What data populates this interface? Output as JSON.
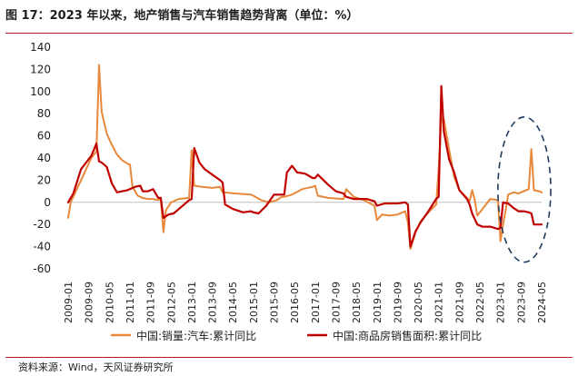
{
  "figure": {
    "title": "图 17：2023 年以来，地产销售与汽车销售趋势背离（单位：%）",
    "source": "资料来源：Wind，天风证券研究所"
  },
  "chart_data": {
    "type": "line",
    "title": "",
    "xlabel": "",
    "ylabel": "",
    "ylim": [
      -60,
      140
    ],
    "yticks": [
      -60,
      -40,
      -20,
      0,
      20,
      40,
      60,
      80,
      100,
      120,
      140
    ],
    "x_start": "2009-01",
    "x_end": "2024-05",
    "xticks": [
      "2009-01",
      "2009-09",
      "2010-05",
      "2011-01",
      "2011-09",
      "2012-05",
      "2013-01",
      "2013-09",
      "2014-05",
      "2015-01",
      "2015-09",
      "2016-05",
      "2017-01",
      "2017-09",
      "2018-05",
      "2019-01",
      "2019-09",
      "2020-05",
      "2021-01",
      "2021-09",
      "2022-05",
      "2023-01",
      "2023-09",
      "2024-05"
    ],
    "legend_position": "bottom",
    "annotation": "dashed-ellipse-2023-2024",
    "series": [
      {
        "name": "中国:销量:汽车:累计同比",
        "color": "#e8883a",
        "points": [
          [
            "2009-01",
            -14
          ],
          [
            "2009-02",
            0
          ],
          [
            "2009-04",
            10
          ],
          [
            "2009-06",
            20
          ],
          [
            "2009-08",
            30
          ],
          [
            "2009-10",
            40
          ],
          [
            "2009-12",
            46
          ],
          [
            "2010-01",
            124
          ],
          [
            "2010-02",
            82
          ],
          [
            "2010-03",
            72
          ],
          [
            "2010-04",
            62
          ],
          [
            "2010-06",
            52
          ],
          [
            "2010-08",
            43
          ],
          [
            "2010-10",
            38
          ],
          [
            "2010-12",
            35
          ],
          [
            "2011-01",
            34
          ],
          [
            "2011-02",
            14
          ],
          [
            "2011-04",
            6
          ],
          [
            "2011-06",
            4
          ],
          [
            "2011-08",
            3
          ],
          [
            "2011-10",
            3
          ],
          [
            "2011-12",
            2
          ],
          [
            "2012-01",
            3
          ],
          [
            "2012-02",
            -27
          ],
          [
            "2012-03",
            -7
          ],
          [
            "2012-05",
            0
          ],
          [
            "2012-08",
            3
          ],
          [
            "2012-12",
            4
          ],
          [
            "2013-01",
            47
          ],
          [
            "2013-02",
            15
          ],
          [
            "2013-05",
            14
          ],
          [
            "2013-09",
            13
          ],
          [
            "2013-12",
            14
          ],
          [
            "2014-01",
            9
          ],
          [
            "2014-06",
            8
          ],
          [
            "2014-12",
            7
          ],
          [
            "2015-01",
            6
          ],
          [
            "2015-04",
            2
          ],
          [
            "2015-07",
            0
          ],
          [
            "2015-10",
            2
          ],
          [
            "2015-12",
            5
          ],
          [
            "2016-01",
            5
          ],
          [
            "2016-04",
            7
          ],
          [
            "2016-08",
            12
          ],
          [
            "2016-12",
            14
          ],
          [
            "2017-01",
            15
          ],
          [
            "2017-02",
            6
          ],
          [
            "2017-06",
            4
          ],
          [
            "2017-12",
            3
          ],
          [
            "2018-01",
            12
          ],
          [
            "2018-04",
            5
          ],
          [
            "2018-08",
            2
          ],
          [
            "2018-12",
            -3
          ],
          [
            "2019-01",
            -16
          ],
          [
            "2019-03",
            -11
          ],
          [
            "2019-06",
            -12
          ],
          [
            "2019-09",
            -11
          ],
          [
            "2019-12",
            -8
          ],
          [
            "2020-01",
            -18
          ],
          [
            "2020-02",
            -42
          ],
          [
            "2020-04",
            -27
          ],
          [
            "2020-06",
            -17
          ],
          [
            "2020-09",
            -9
          ],
          [
            "2020-12",
            -2
          ],
          [
            "2021-01",
            30
          ],
          [
            "2021-02",
            76
          ],
          [
            "2021-03",
            75
          ],
          [
            "2021-05",
            48
          ],
          [
            "2021-07",
            23
          ],
          [
            "2021-09",
            11
          ],
          [
            "2021-12",
            4
          ],
          [
            "2022-01",
            1
          ],
          [
            "2022-02",
            11
          ],
          [
            "2022-03",
            2
          ],
          [
            "2022-04",
            -12
          ],
          [
            "2022-06",
            -6
          ],
          [
            "2022-09",
            3
          ],
          [
            "2022-12",
            2
          ],
          [
            "2023-01",
            -35
          ],
          [
            "2023-02",
            -20
          ],
          [
            "2023-03",
            -7
          ],
          [
            "2023-04",
            7
          ],
          [
            "2023-06",
            9
          ],
          [
            "2023-08",
            8
          ],
          [
            "2023-10",
            10
          ],
          [
            "2023-12",
            12
          ],
          [
            "2024-01",
            48
          ],
          [
            "2024-02",
            11
          ],
          [
            "2024-04",
            10
          ],
          [
            "2024-05",
            9
          ]
        ]
      },
      {
        "name": "中国:商品房销售面积:累计同比",
        "color": "#c00000",
        "points": [
          [
            "2009-01",
            0
          ],
          [
            "2009-03",
            8
          ],
          [
            "2009-06",
            30
          ],
          [
            "2009-08",
            36
          ],
          [
            "2009-10",
            42
          ],
          [
            "2009-12",
            53
          ],
          [
            "2010-01",
            37
          ],
          [
            "2010-02",
            36
          ],
          [
            "2010-04",
            32
          ],
          [
            "2010-06",
            17
          ],
          [
            "2010-08",
            9
          ],
          [
            "2010-10",
            10
          ],
          [
            "2010-12",
            11
          ],
          [
            "2011-01",
            12
          ],
          [
            "2011-03",
            14
          ],
          [
            "2011-05",
            15
          ],
          [
            "2011-06",
            10
          ],
          [
            "2011-08",
            10
          ],
          [
            "2011-10",
            12
          ],
          [
            "2011-12",
            4
          ],
          [
            "2012-01",
            4
          ],
          [
            "2012-02",
            -14
          ],
          [
            "2012-04",
            -11
          ],
          [
            "2012-06",
            -10
          ],
          [
            "2012-09",
            -4
          ],
          [
            "2012-12",
            2
          ],
          [
            "2013-01",
            3
          ],
          [
            "2013-02",
            49
          ],
          [
            "2013-04",
            36
          ],
          [
            "2013-06",
            30
          ],
          [
            "2013-09",
            25
          ],
          [
            "2013-12",
            20
          ],
          [
            "2014-01",
            18
          ],
          [
            "2014-02",
            -2
          ],
          [
            "2014-05",
            -6
          ],
          [
            "2014-09",
            -9
          ],
          [
            "2014-12",
            -8
          ],
          [
            "2015-01",
            -9
          ],
          [
            "2015-03",
            -10
          ],
          [
            "2015-06",
            -3
          ],
          [
            "2015-09",
            7
          ],
          [
            "2015-12",
            7
          ],
          [
            "2016-01",
            7
          ],
          [
            "2016-02",
            27
          ],
          [
            "2016-04",
            33
          ],
          [
            "2016-06",
            27
          ],
          [
            "2016-09",
            26
          ],
          [
            "2016-12",
            22
          ],
          [
            "2017-01",
            22
          ],
          [
            "2017-02",
            25
          ],
          [
            "2017-06",
            16
          ],
          [
            "2017-09",
            10
          ],
          [
            "2017-12",
            8
          ],
          [
            "2018-01",
            5
          ],
          [
            "2018-04",
            3
          ],
          [
            "2018-09",
            3
          ],
          [
            "2018-12",
            1
          ],
          [
            "2019-01",
            -3
          ],
          [
            "2019-04",
            -1
          ],
          [
            "2019-09",
            -1
          ],
          [
            "2019-12",
            0
          ],
          [
            "2020-01",
            -2
          ],
          [
            "2020-02",
            -40
          ],
          [
            "2020-04",
            -26
          ],
          [
            "2020-06",
            -18
          ],
          [
            "2020-09",
            -8
          ],
          [
            "2020-12",
            3
          ],
          [
            "2021-01",
            5
          ],
          [
            "2021-02",
            105
          ],
          [
            "2021-03",
            64
          ],
          [
            "2021-05",
            39
          ],
          [
            "2021-07",
            27
          ],
          [
            "2021-09",
            11
          ],
          [
            "2021-12",
            3
          ],
          [
            "2022-01",
            -2
          ],
          [
            "2022-02",
            -10
          ],
          [
            "2022-04",
            -20
          ],
          [
            "2022-06",
            -22
          ],
          [
            "2022-09",
            -22
          ],
          [
            "2022-12",
            -24
          ],
          [
            "2023-01",
            -23
          ],
          [
            "2023-02",
            0
          ],
          [
            "2023-04",
            -1
          ],
          [
            "2023-06",
            -5
          ],
          [
            "2023-08",
            -8
          ],
          [
            "2023-10",
            -8
          ],
          [
            "2023-12",
            -9
          ],
          [
            "2024-01",
            -10
          ],
          [
            "2024-02",
            -20
          ],
          [
            "2024-04",
            -20
          ],
          [
            "2024-05",
            -20
          ]
        ]
      }
    ]
  }
}
